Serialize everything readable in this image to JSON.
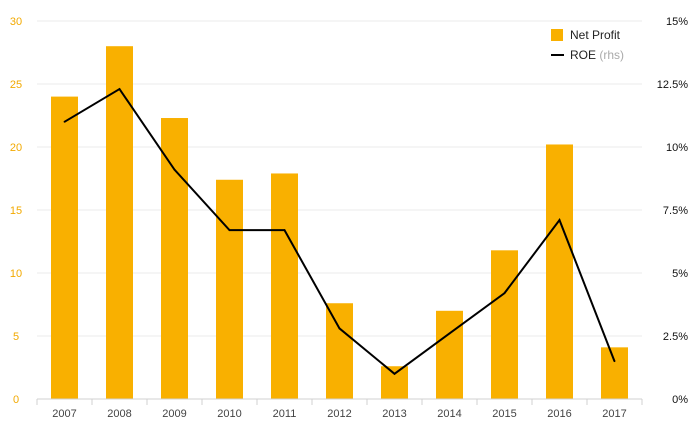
{
  "chart_data": {
    "type": "bar",
    "categories": [
      "2007",
      "2008",
      "2009",
      "2010",
      "2011",
      "2012",
      "2013",
      "2014",
      "2015",
      "2016",
      "2017"
    ],
    "series": [
      {
        "name": "Net Profit",
        "type": "bar",
        "axis": "left",
        "color": "#f9b000",
        "values": [
          24.0,
          28.0,
          22.3,
          17.4,
          17.9,
          7.6,
          2.6,
          7.0,
          11.8,
          20.2,
          4.1
        ]
      },
      {
        "name": "ROE",
        "type": "line",
        "axis": "right",
        "color": "#000000",
        "values": [
          11.0,
          12.3,
          9.1,
          6.7,
          6.7,
          2.8,
          1.0,
          2.6,
          4.2,
          7.1,
          1.5
        ]
      }
    ],
    "ylim_left": [
      0,
      30
    ],
    "yticks_left": [
      "0",
      "5",
      "10",
      "15",
      "20",
      "25",
      "30"
    ],
    "ylim_right": [
      0,
      15
    ],
    "yticks_right": [
      "0%",
      "2.5%",
      "5%",
      "7.5%",
      "10%",
      "12.5%",
      "15%"
    ],
    "legend": {
      "position": "top-right",
      "items": [
        {
          "label": "Net Profit",
          "suffix": ""
        },
        {
          "label": "ROE",
          "suffix": "(rhs)"
        }
      ]
    },
    "grid": true
  }
}
